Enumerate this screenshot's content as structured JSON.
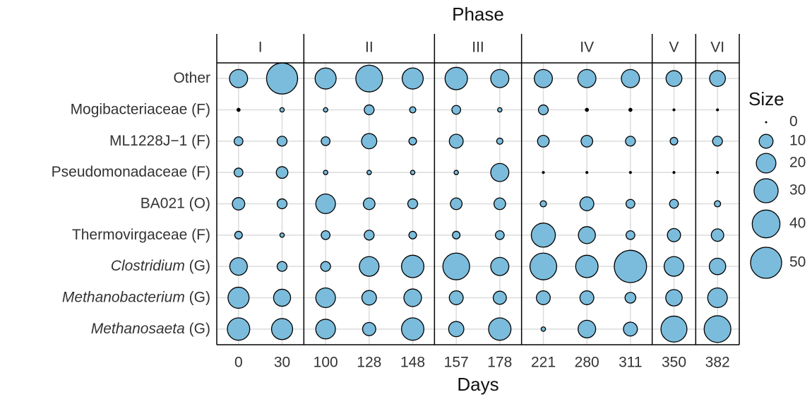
{
  "chart_data": {
    "type": "bubble",
    "title": "Phase",
    "x_label": "Days",
    "color": "#7bbcdc",
    "grid": true,
    "facets": [
      {
        "label": "I",
        "categories": [
          "0",
          "30"
        ]
      },
      {
        "label": "II",
        "categories": [
          "100",
          "128",
          "148"
        ]
      },
      {
        "label": "III",
        "categories": [
          "157",
          "178"
        ]
      },
      {
        "label": "IV",
        "categories": [
          "221",
          "280",
          "311"
        ]
      },
      {
        "label": "V",
        "categories": [
          "350"
        ]
      },
      {
        "label": "VI",
        "categories": [
          "382"
        ]
      }
    ],
    "series": [
      {
        "name": "Other",
        "values": [
          [
            17,
            50
          ],
          [
            23,
            37,
            23
          ],
          [
            26,
            17
          ],
          [
            17,
            17,
            17
          ],
          [
            13
          ],
          [
            13
          ]
        ]
      },
      {
        "name": "Mogibacteriaceae",
        "rank": "(F)",
        "values": [
          [
            0.5,
            1
          ],
          [
            1,
            5,
            2
          ],
          [
            4,
            1
          ],
          [
            5,
            0.5,
            0.5
          ],
          [
            0.2
          ],
          [
            0.2
          ]
        ]
      },
      {
        "name": "ML1228J−1",
        "rank": "(F)",
        "values": [
          [
            4,
            5
          ],
          [
            4,
            12,
            3
          ],
          [
            10,
            2
          ],
          [
            7,
            7,
            5
          ],
          [
            3
          ],
          [
            5
          ]
        ]
      },
      {
        "name": "Pseudomonadaceae",
        "rank": "(F)",
        "values": [
          [
            4,
            7
          ],
          [
            1,
            1,
            1
          ],
          [
            1,
            17
          ],
          [
            0.2,
            0.2,
            0.2
          ],
          [
            0.2
          ],
          [
            0.2
          ]
        ]
      },
      {
        "name": "BA021",
        "rank": "(O)",
        "values": [
          [
            8,
            5
          ],
          [
            20,
            7,
            5
          ],
          [
            7,
            7
          ],
          [
            2,
            10,
            4
          ],
          [
            4
          ],
          [
            2
          ]
        ]
      },
      {
        "name": "Thermovirgaceae",
        "rank": "(F)",
        "values": [
          [
            3,
            1
          ],
          [
            4,
            5,
            3
          ],
          [
            3,
            4
          ],
          [
            30,
            15,
            4
          ],
          [
            9
          ],
          [
            8
          ]
        ]
      },
      {
        "name": "Clostridium",
        "rank": "(G)",
        "italic": true,
        "values": [
          [
            16,
            5
          ],
          [
            5,
            20,
            26
          ],
          [
            37,
            17
          ],
          [
            37,
            26,
            54
          ],
          [
            20
          ],
          [
            14
          ]
        ]
      },
      {
        "name": "Methanobacterium",
        "rank": "(G)",
        "italic": true,
        "values": [
          [
            23,
            15
          ],
          [
            20,
            11,
            16
          ],
          [
            10,
            9
          ],
          [
            10,
            10,
            6
          ],
          [
            14
          ],
          [
            20
          ]
        ]
      },
      {
        "name": "Methanosaeta",
        "rank": "(G)",
        "italic": true,
        "values": [
          [
            26,
            23
          ],
          [
            20,
            9,
            26
          ],
          [
            12,
            26
          ],
          [
            1,
            16,
            10
          ],
          [
            35
          ],
          [
            37
          ]
        ]
      }
    ],
    "size_legend": {
      "title": "Size",
      "values": [
        0,
        10,
        20,
        30,
        40,
        50
      ]
    }
  }
}
